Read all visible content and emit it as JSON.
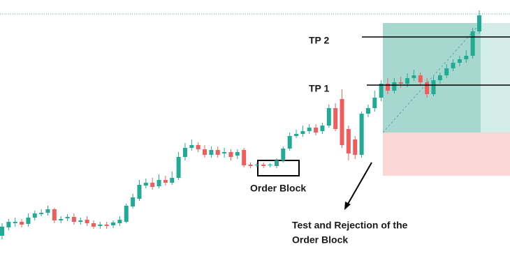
{
  "chart_data": {
    "type": "candlestick",
    "up_color": "#22ab94",
    "down_color": "#f05d5d",
    "ylim": [
      0,
      400
    ],
    "open": [
      62,
      74,
      80,
      82,
      79,
      88,
      93,
      95,
      100,
      84,
      87,
      89,
      82,
      85,
      80,
      76,
      78,
      77,
      80,
      82,
      104,
      115,
      134,
      138,
      133,
      142,
      138,
      145,
      175,
      188,
      192,
      186,
      178,
      185,
      180,
      182,
      177,
      185,
      164,
      163,
      164,
      163,
      162,
      170,
      187,
      205,
      208,
      212,
      217,
      212,
      220,
      245,
      258,
      215,
      200,
      178,
      237,
      245,
      260,
      280,
      270,
      282,
      280,
      288,
      292,
      282,
      265,
      285,
      292,
      302,
      310,
      315,
      320,
      355
    ],
    "high": [
      80,
      86,
      88,
      86,
      94,
      98,
      100,
      105,
      102,
      90,
      93,
      94,
      88,
      90,
      84,
      82,
      82,
      84,
      90,
      108,
      122,
      142,
      144,
      145,
      150,
      148,
      154,
      182,
      195,
      200,
      196,
      192,
      190,
      190,
      188,
      186,
      186,
      188,
      167,
      167,
      167,
      166,
      173,
      190,
      210,
      214,
      220,
      222,
      222,
      224,
      250,
      252,
      272,
      220,
      205,
      240,
      250,
      270,
      285,
      288,
      288,
      290,
      295,
      300,
      296,
      288,
      290,
      296,
      308,
      315,
      320,
      328,
      360,
      385
    ],
    "low": [
      57,
      70,
      75,
      74,
      75,
      84,
      90,
      91,
      80,
      80,
      83,
      78,
      78,
      76,
      72,
      72,
      72,
      73,
      76,
      80,
      101,
      112,
      130,
      128,
      130,
      134,
      135,
      142,
      170,
      184,
      182,
      174,
      174,
      174,
      174,
      170,
      172,
      160,
      159,
      160,
      159,
      160,
      159,
      167,
      184,
      202,
      204,
      208,
      206,
      208,
      217,
      212,
      188,
      170,
      172,
      174,
      232,
      240,
      255,
      265,
      266,
      274,
      275,
      284,
      278,
      260,
      262,
      280,
      288,
      298,
      305,
      310,
      316,
      352
    ],
    "close": [
      75,
      82,
      82,
      78,
      88,
      94,
      95,
      100,
      84,
      86,
      89,
      82,
      84,
      80,
      75,
      78,
      76,
      81,
      85,
      105,
      117,
      135,
      138,
      132,
      142,
      138,
      145,
      175,
      188,
      192,
      186,
      178,
      185,
      178,
      182,
      175,
      182,
      163,
      162,
      164,
      162,
      164,
      170,
      187,
      205,
      208,
      212,
      217,
      210,
      220,
      245,
      215,
      192,
      180,
      178,
      237,
      245,
      260,
      280,
      270,
      282,
      280,
      288,
      292,
      282,
      265,
      285,
      292,
      302,
      310,
      315,
      320,
      355,
      378
    ],
    "take_profit": [
      {
        "label": "TP 2",
        "value": 347
      },
      {
        "label": "TP 1",
        "value": 278
      }
    ],
    "annotations": {
      "order_block": "Order Block",
      "test_line1": "Test and Rejection of the",
      "test_line2": "Order Block"
    }
  }
}
